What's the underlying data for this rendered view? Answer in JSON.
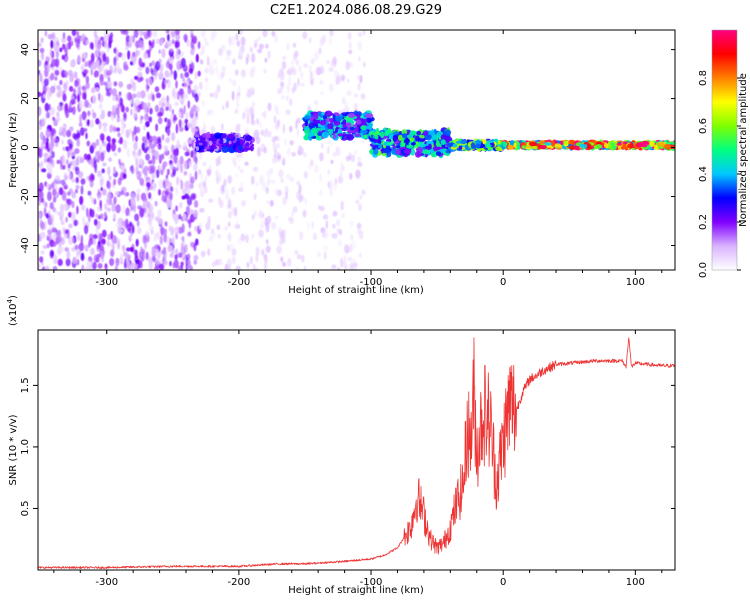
{
  "title": "C2E1.2024.086.08.29.G29",
  "chart_data": [
    {
      "type": "heatmap",
      "title": "C2E1.2024.086.08.29.G29",
      "xlabel": "Height of straight line (km)",
      "ylabel": "Frequency (Hz)",
      "xlim": [
        -352,
        130
      ],
      "ylim": [
        -50,
        48
      ],
      "xticks": [
        -300,
        -200,
        -100,
        0,
        100
      ],
      "yticks": [
        -40,
        -20,
        0,
        20,
        40
      ],
      "colorbar": {
        "label": "Normalized spectral amplitude",
        "range": [
          0.0,
          1.0
        ],
        "ticks": [
          0.0,
          0.2,
          0.4,
          0.6,
          0.8
        ],
        "colors": [
          "#ffffff",
          "#d9b3ff",
          "#8000ff",
          "#0000ff",
          "#00c8ff",
          "#00ff80",
          "#80ff00",
          "#ffff00",
          "#ff8000",
          "#ff0000",
          "#ff0080"
        ]
      },
      "features": [
        {
          "region": "noise",
          "x_range": [
            -352,
            -230
          ],
          "freq_range": [
            -50,
            48
          ],
          "amplitude": 0.15
        },
        {
          "region": "noise",
          "x_range": [
            -230,
            -105
          ],
          "freq_range": [
            -50,
            48
          ],
          "amplitude": 0.06
        },
        {
          "region": "signal",
          "x_range": [
            -232,
            -190
          ],
          "freq_center": 2,
          "freq_width": 6,
          "amplitude": 0.25
        },
        {
          "region": "signal",
          "x_range": [
            -150,
            -100
          ],
          "freq_center": 9,
          "freq_width": 10,
          "amplitude": 0.4
        },
        {
          "region": "signal",
          "x_range": [
            -100,
            -40
          ],
          "freq_center": 2,
          "freq_width": 10,
          "amplitude": 0.45
        },
        {
          "region": "signal",
          "x_range": [
            -40,
            0
          ],
          "freq_center": 1,
          "freq_width": 3,
          "amplitude": 0.55
        },
        {
          "region": "signal",
          "x_range": [
            0,
            130
          ],
          "freq_center": 1,
          "freq_width": 2,
          "amplitude": 0.85
        }
      ]
    },
    {
      "type": "line",
      "title": "",
      "xlabel": "Height of straight line (km)",
      "ylabel": "SNR (10 * v/v)",
      "y_multiplier_label": "(x10",
      "y_multiplier_exp": "4",
      "y_multiplier_close": ")",
      "xlim": [
        -352,
        130
      ],
      "ylim": [
        0,
        1.95
      ],
      "xticks": [
        -300,
        -200,
        -100,
        0,
        100
      ],
      "yticks": [
        0.5,
        1.0,
        1.5
      ],
      "ytick_labels": [
        "0.5",
        "1.0",
        "1.5"
      ],
      "series": [
        {
          "color": "#ee3333",
          "x": [
            -352,
            -300,
            -250,
            -200,
            -170,
            -150,
            -120,
            -100,
            -90,
            -80,
            -70,
            -65,
            -60,
            -55,
            -50,
            -45,
            -40,
            -35,
            -30,
            -27,
            -25,
            -22,
            -20,
            -15,
            -10,
            -5,
            0,
            5,
            10,
            15,
            20,
            25,
            30,
            40,
            50,
            60,
            70,
            80,
            90,
            93,
            95,
            97,
            100,
            110,
            120,
            130
          ],
          "y": [
            0.02,
            0.02,
            0.03,
            0.03,
            0.05,
            0.05,
            0.07,
            0.09,
            0.12,
            0.18,
            0.35,
            0.6,
            0.45,
            0.25,
            0.18,
            0.22,
            0.35,
            0.55,
            0.7,
            1.2,
            1.0,
            1.45,
            0.95,
            1.3,
            1.2,
            0.7,
            1.05,
            1.35,
            1.3,
            1.45,
            1.55,
            1.58,
            1.62,
            1.67,
            1.68,
            1.69,
            1.7,
            1.7,
            1.7,
            1.65,
            1.9,
            1.65,
            1.68,
            1.67,
            1.66,
            1.66
          ]
        }
      ]
    }
  ]
}
